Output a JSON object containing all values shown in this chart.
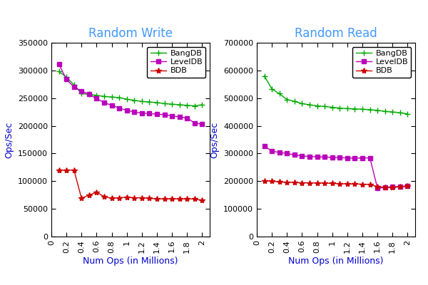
{
  "left_title": "Random Write",
  "right_title": "Random Read",
  "xlabel": "Num Ops (in Millions)",
  "ylabel": "Ops/Sec",
  "title_color": "#4499ff",
  "xlabel_color": "#0000cc",
  "ylabel_color": "#0000cc",
  "x_ticks": [
    0,
    0.2,
    0.4,
    0.6,
    0.8,
    1.0,
    1.2,
    1.4,
    1.6,
    1.8,
    2.0
  ],
  "x_tick_labels": [
    "0",
    "0.2",
    "0.4",
    "0.6",
    "0.8",
    "1",
    "1.2",
    "1.4",
    "1.6",
    "1.8",
    "2"
  ],
  "write_bangdb_x": [
    0.1,
    0.2,
    0.3,
    0.4,
    0.5,
    0.6,
    0.7,
    0.8,
    0.9,
    1.0,
    1.1,
    1.2,
    1.3,
    1.4,
    1.5,
    1.6,
    1.7,
    1.8,
    1.9,
    2.0
  ],
  "write_bangdb_y": [
    298000,
    288000,
    274000,
    258000,
    257000,
    255000,
    253000,
    252000,
    251000,
    248000,
    246000,
    244000,
    243000,
    242000,
    240000,
    239000,
    238000,
    237000,
    236000,
    238000
  ],
  "write_leveldb_x": [
    0.1,
    0.2,
    0.3,
    0.4,
    0.5,
    0.6,
    0.7,
    0.8,
    0.9,
    1.0,
    1.1,
    1.2,
    1.3,
    1.4,
    1.5,
    1.6,
    1.7,
    1.8,
    1.9,
    2.0
  ],
  "write_leveldb_y": [
    311000,
    284000,
    270000,
    263000,
    257000,
    249000,
    242000,
    237000,
    232000,
    228000,
    225000,
    223000,
    222000,
    221000,
    220000,
    218000,
    216000,
    214000,
    205000,
    203000
  ],
  "write_bdb_x": [
    0.1,
    0.2,
    0.3,
    0.4,
    0.5,
    0.6,
    0.7,
    0.8,
    0.9,
    1.0,
    1.1,
    1.2,
    1.3,
    1.4,
    1.5,
    1.6,
    1.7,
    1.8,
    1.9,
    2.0
  ],
  "write_bdb_y": [
    120000,
    120000,
    120000,
    69000,
    75000,
    80000,
    72000,
    69000,
    70000,
    71000,
    70000,
    70000,
    69000,
    68000,
    68000,
    68000,
    68000,
    68000,
    68000,
    65000
  ],
  "read_bangdb_x": [
    0.1,
    0.2,
    0.3,
    0.4,
    0.5,
    0.6,
    0.7,
    0.8,
    0.9,
    1.0,
    1.1,
    1.2,
    1.3,
    1.4,
    1.5,
    1.6,
    1.7,
    1.8,
    1.9,
    2.0
  ],
  "read_bangdb_y": [
    580000,
    533000,
    516000,
    495000,
    488000,
    480000,
    476000,
    472000,
    470000,
    467000,
    464000,
    462000,
    461000,
    460000,
    458000,
    456000,
    452000,
    450000,
    447000,
    443000
  ],
  "read_leveldb_x": [
    0.1,
    0.2,
    0.3,
    0.4,
    0.5,
    0.6,
    0.7,
    0.8,
    0.9,
    1.0,
    1.1,
    1.2,
    1.3,
    1.4,
    1.5,
    1.6,
    1.7,
    1.8,
    1.9,
    2.0
  ],
  "read_leveldb_y": [
    328000,
    308000,
    304000,
    300000,
    295000,
    291000,
    289000,
    288000,
    287000,
    286000,
    285000,
    284000,
    283000,
    284000,
    284000,
    175000,
    177000,
    180000,
    180000,
    182000
  ],
  "read_bdb_x": [
    0.1,
    0.2,
    0.3,
    0.4,
    0.5,
    0.6,
    0.7,
    0.8,
    0.9,
    1.0,
    1.1,
    1.2,
    1.3,
    1.4,
    1.5,
    1.6,
    1.7,
    1.8,
    1.9,
    2.0
  ],
  "read_bdb_y": [
    202000,
    200000,
    197000,
    196000,
    195000,
    194000,
    194000,
    193000,
    193000,
    192000,
    191000,
    190000,
    190000,
    189000,
    188000,
    180000,
    178000,
    177000,
    180000,
    182000
  ],
  "bangdb_color": "#00aa00",
  "leveldb_color": "#bb00bb",
  "bdb_color": "#cc0000",
  "bangdb_marker": "+",
  "leveldb_marker": "s",
  "bdb_marker": "*",
  "write_ylim": [
    0,
    350000
  ],
  "read_ylim": [
    0,
    700000
  ],
  "write_yticks": [
    0,
    50000,
    100000,
    150000,
    200000,
    250000,
    300000,
    350000
  ],
  "read_yticks": [
    0,
    100000,
    200000,
    300000,
    400000,
    500000,
    600000,
    700000
  ],
  "xlim": [
    0,
    2.1
  ],
  "bg_color": "#ffffff",
  "legend_labels": [
    "BangDB",
    "LevelDB",
    "BDB"
  ],
  "markersize": 4,
  "linewidth": 1.0,
  "tick_fontsize": 8,
  "label_fontsize": 9,
  "title_fontsize": 12,
  "legend_fontsize": 8
}
